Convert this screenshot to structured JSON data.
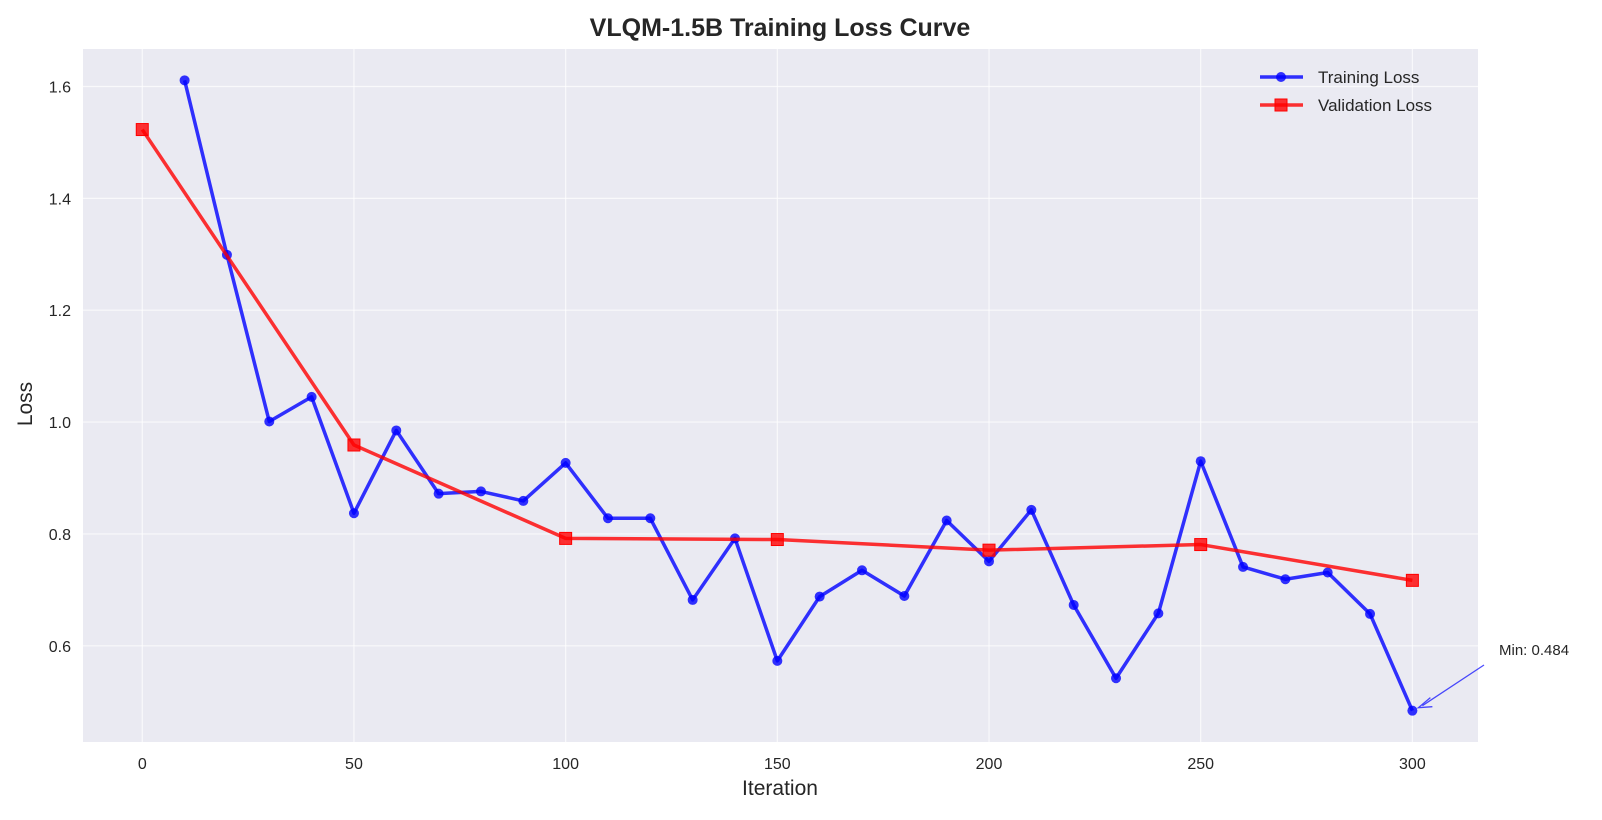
{
  "chart_data": {
    "type": "line",
    "title": "VLQM-1.5B Training Loss Curve",
    "xlabel": "Iteration",
    "ylabel": "Loss",
    "xlim": [
      -14,
      315.5
    ],
    "ylim": [
      0.428,
      1.667
    ],
    "grid": true,
    "legend_placement": "top-right",
    "xticks": [
      0,
      50,
      100,
      150,
      200,
      250,
      300
    ],
    "yticks": [
      0.6,
      0.8,
      1.0,
      1.2,
      1.4,
      1.6
    ],
    "ytick_labels": [
      "0.6",
      "0.8",
      "1.0",
      "1.2",
      "1.4",
      "1.6"
    ],
    "colors": {
      "background": "#eaeaf2",
      "grid": "#ffffff",
      "training": "#0000ff",
      "validation": "#ff0000"
    },
    "series": [
      {
        "name": "Training Loss",
        "marker": "circle",
        "color": "#0000ff",
        "x": [
          10,
          20,
          30,
          40,
          50,
          60,
          70,
          80,
          90,
          100,
          110,
          120,
          130,
          140,
          150,
          160,
          170,
          180,
          190,
          200,
          210,
          220,
          230,
          240,
          250,
          260,
          270,
          280,
          290,
          300
        ],
        "y": [
          1.611,
          1.299,
          1.001,
          1.045,
          0.837,
          0.985,
          0.872,
          0.876,
          0.859,
          0.927,
          0.828,
          0.828,
          0.682,
          0.792,
          0.573,
          0.688,
          0.735,
          0.689,
          0.824,
          0.751,
          0.843,
          0.673,
          0.542,
          0.658,
          0.93,
          0.741,
          0.719,
          0.731,
          0.657,
          0.484
        ]
      },
      {
        "name": "Validation Loss",
        "marker": "square",
        "color": "#ff0000",
        "x": [
          0,
          50,
          100,
          150,
          200,
          250,
          300
        ],
        "y": [
          1.523,
          0.959,
          0.792,
          0.79,
          0.771,
          0.781,
          0.717
        ]
      }
    ],
    "annotations": [
      {
        "text": "Min: 0.484",
        "x": 300,
        "y": 0.484
      }
    ]
  }
}
